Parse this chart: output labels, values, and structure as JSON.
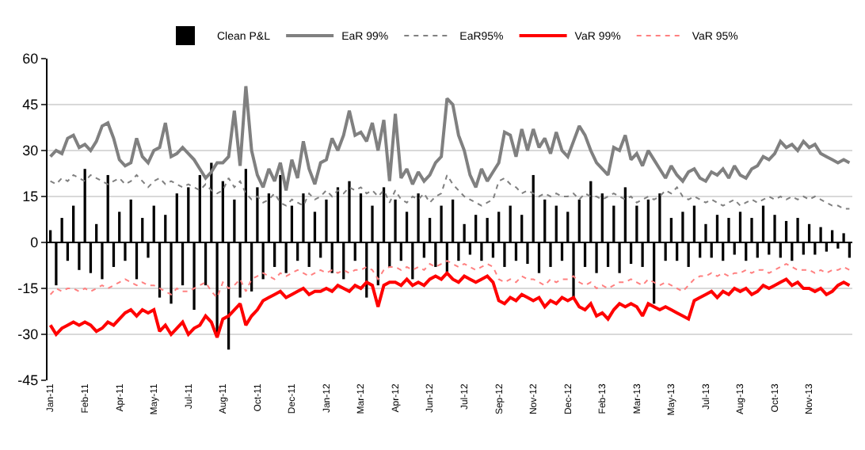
{
  "chart_data": {
    "type": "line",
    "categories": [
      "Jan-11",
      null,
      null,
      null,
      null,
      null,
      "Feb-11",
      null,
      null,
      null,
      null,
      null,
      "Apr-11",
      null,
      null,
      null,
      null,
      null,
      "May-11",
      null,
      null,
      null,
      null,
      null,
      "Jul-11",
      null,
      null,
      null,
      null,
      null,
      "Aug-11",
      null,
      null,
      null,
      null,
      null,
      "Oct-11",
      null,
      null,
      null,
      null,
      null,
      "Dec-11",
      null,
      null,
      null,
      null,
      null,
      "Jan-12",
      null,
      null,
      null,
      null,
      null,
      "Mar-12",
      null,
      null,
      null,
      null,
      null,
      "Apr-12",
      null,
      null,
      null,
      null,
      null,
      "Jun-12",
      null,
      null,
      null,
      null,
      null,
      "Jul-12",
      null,
      null,
      null,
      null,
      null,
      "Sep-12",
      null,
      null,
      null,
      null,
      null,
      "Nov-12",
      null,
      null,
      null,
      null,
      null,
      "Dec-12",
      null,
      null,
      null,
      null,
      null,
      "Feb-13",
      null,
      null,
      null,
      null,
      null,
      "Mar-13",
      null,
      null,
      null,
      null,
      null,
      "May-13",
      null,
      null,
      null,
      null,
      null,
      "Jul-13",
      null,
      null,
      null,
      null,
      null,
      "Aug-13",
      null,
      null,
      null,
      null,
      null,
      "Oct-13",
      null,
      null,
      null,
      null,
      null,
      "Nov-13",
      null,
      null,
      null,
      null,
      null,
      null,
      null
    ],
    "series": [
      {
        "name": "Clean P&L",
        "type": "bar",
        "color": "#000000",
        "values": [
          4,
          -14,
          8,
          -6,
          12,
          -9,
          24,
          -10,
          6,
          -12,
          22,
          -8,
          10,
          -6,
          14,
          -12,
          8,
          -5,
          12,
          -18,
          9,
          -20,
          16,
          -14,
          18,
          -22,
          22,
          -14,
          26,
          -30,
          20,
          -35,
          14,
          -18,
          24,
          -16,
          18,
          -12,
          16,
          -8,
          22,
          -10,
          12,
          -6,
          16,
          -8,
          10,
          -5,
          14,
          -10,
          18,
          -12,
          20,
          -6,
          16,
          -18,
          12,
          -14,
          18,
          -8,
          14,
          -6,
          10,
          -12,
          16,
          -5,
          8,
          -8,
          12,
          -10,
          14,
          -6,
          6,
          -4,
          9,
          -6,
          8,
          -5,
          10,
          -8,
          12,
          -6,
          9,
          -7,
          22,
          -10,
          14,
          -8,
          12,
          -6,
          10,
          -18,
          14,
          -8,
          20,
          -10,
          16,
          -8,
          12,
          -10,
          18,
          -7,
          12,
          -8,
          14,
          -20,
          16,
          -6,
          8,
          -6,
          10,
          -8,
          12,
          -5,
          6,
          -5,
          9,
          -6,
          8,
          -4,
          10,
          -6,
          8,
          -5,
          12,
          -4,
          9,
          -5,
          7,
          -6,
          8,
          -4,
          6,
          -4,
          5,
          -3,
          4,
          -2,
          3,
          -5
        ]
      },
      {
        "name": "EaR 99%",
        "color": "#808080",
        "line_style": "solid",
        "values": [
          28,
          30,
          29,
          34,
          35,
          31,
          32,
          30,
          33,
          38,
          39,
          34,
          27,
          25,
          26,
          34,
          28,
          26,
          30,
          31,
          39,
          28,
          29,
          31,
          29,
          27,
          24,
          21,
          23,
          26,
          26,
          28,
          43,
          25,
          51,
          30,
          22,
          18,
          24,
          20,
          26,
          17,
          27,
          21,
          33,
          24,
          19,
          26,
          27,
          34,
          30,
          35,
          43,
          35,
          36,
          33,
          39,
          30,
          40,
          20,
          42,
          21,
          24,
          19,
          23,
          20,
          22,
          26,
          28,
          47,
          45,
          35,
          30,
          22,
          18,
          24,
          20,
          23,
          26,
          36,
          35,
          28,
          37,
          30,
          37,
          31,
          34,
          29,
          36,
          30,
          28,
          33,
          38,
          35,
          30,
          26,
          24,
          22,
          31,
          30,
          35,
          27,
          29,
          25,
          30,
          27,
          24,
          21,
          25,
          22,
          20,
          23,
          24,
          21,
          20,
          23,
          22,
          24,
          21,
          25,
          22,
          21,
          24,
          25,
          28,
          27,
          29,
          33,
          31,
          32,
          30,
          33,
          31,
          32,
          29,
          28,
          27,
          26,
          27,
          26
        ]
      },
      {
        "name": "EaR95%",
        "color": "#808080",
        "line_style": "dotted",
        "values": [
          20,
          19,
          21,
          20,
          22,
          21,
          20,
          22,
          21,
          20,
          19,
          20,
          21,
          19,
          20,
          22,
          20,
          18,
          20,
          21,
          19,
          20,
          19,
          18,
          19,
          18,
          17,
          19,
          17,
          16,
          17,
          21,
          18,
          20,
          16,
          14,
          15,
          13,
          14,
          16,
          13,
          12,
          14,
          13,
          12,
          16,
          14,
          15,
          17,
          15,
          17,
          16,
          18,
          17,
          18,
          16,
          17,
          15,
          17,
          13,
          17,
          14,
          13,
          15,
          14,
          16,
          13,
          15,
          16,
          22,
          19,
          17,
          15,
          14,
          13,
          12,
          13,
          14,
          20,
          21,
          19,
          18,
          16,
          17,
          16,
          15,
          16,
          15,
          16,
          15,
          15,
          16,
          14,
          16,
          15,
          15,
          14,
          15,
          16,
          15,
          14,
          15,
          13,
          14,
          15,
          14,
          15,
          17,
          16,
          18,
          15,
          14,
          15,
          14,
          13,
          14,
          13,
          12,
          13,
          14,
          12,
          13,
          14,
          13,
          14,
          15,
          14,
          15,
          14,
          15,
          14,
          15,
          14,
          15,
          14,
          13,
          12,
          12,
          11,
          11
        ]
      },
      {
        "name": "VaR 99%",
        "color": "#ff0000",
        "line_style": "solid",
        "values": [
          -27,
          -30,
          -28,
          -27,
          -26,
          -27,
          -26,
          -27,
          -29,
          -28,
          -26,
          -27,
          -25,
          -23,
          -22,
          -24,
          -22,
          -23,
          -22,
          -29,
          -27,
          -30,
          -28,
          -26,
          -30,
          -28,
          -27,
          -24,
          -26,
          -31,
          -25,
          -24,
          -22,
          -20,
          -27,
          -24,
          -22,
          -19,
          -18,
          -17,
          -16,
          -18,
          -17,
          -16,
          -15,
          -17,
          -16,
          -16,
          -15,
          -16,
          -14,
          -15,
          -16,
          -14,
          -15,
          -13,
          -14,
          -21,
          -14,
          -13,
          -13,
          -14,
          -12,
          -14,
          -13,
          -14,
          -12,
          -11,
          -12,
          -10,
          -12,
          -13,
          -11,
          -12,
          -13,
          -12,
          -11,
          -13,
          -19,
          -20,
          -18,
          -19,
          -17,
          -18,
          -19,
          -18,
          -21,
          -19,
          -20,
          -18,
          -19,
          -18,
          -21,
          -22,
          -20,
          -24,
          -23,
          -25,
          -22,
          -20,
          -21,
          -20,
          -21,
          -24,
          -20,
          -21,
          -22,
          -21,
          -22,
          -23,
          -24,
          -25,
          -19,
          -18,
          -17,
          -16,
          -18,
          -16,
          -17,
          -15,
          -16,
          -15,
          -17,
          -16,
          -14,
          -15,
          -14,
          -13,
          -12,
          -14,
          -13,
          -15,
          -15,
          -16,
          -15,
          -17,
          -16,
          -14,
          -13,
          -14
        ]
      },
      {
        "name": "VaR 95%",
        "color": "#ff8080",
        "line_style": "dotted",
        "values": [
          -17,
          -15,
          -16,
          -15,
          -15,
          -16,
          -15,
          -16,
          -15,
          -14,
          -15,
          -14,
          -13,
          -12,
          -13,
          -14,
          -13,
          -14,
          -14,
          -15,
          -16,
          -17,
          -15,
          -16,
          -16,
          -15,
          -14,
          -13,
          -16,
          -18,
          -13,
          -15,
          -14,
          -12,
          -16,
          -12,
          -11,
          -10,
          -11,
          -12,
          -10,
          -11,
          -10,
          -9,
          -10,
          -11,
          -10,
          -9,
          -10,
          -9,
          -10,
          -9,
          -10,
          -9,
          -9,
          -8,
          -9,
          -12,
          -9,
          -8,
          -8,
          -9,
          -8,
          -9,
          -8,
          -9,
          -7,
          -8,
          -7,
          -6,
          -7,
          -8,
          -7,
          -8,
          -9,
          -8,
          -7,
          -8,
          -12,
          -13,
          -12,
          -13,
          -11,
          -12,
          -12,
          -13,
          -14,
          -12,
          -13,
          -12,
          -12,
          -11,
          -13,
          -14,
          -13,
          -15,
          -14,
          -15,
          -14,
          -13,
          -13,
          -12,
          -13,
          -14,
          -12,
          -13,
          -14,
          -13,
          -14,
          -15,
          -16,
          -14,
          -12,
          -11,
          -11,
          -10,
          -11,
          -10,
          -11,
          -10,
          -10,
          -9,
          -10,
          -9,
          -9,
          -10,
          -9,
          -8,
          -7,
          -8,
          -9,
          -9,
          -9,
          -10,
          -9,
          -10,
          -9,
          -9,
          -8,
          -9
        ]
      }
    ],
    "ylim": [
      -45,
      60
    ],
    "yticks": [
      -45,
      -30,
      -15,
      0,
      15,
      30,
      45,
      60
    ],
    "grid": "y",
    "legend": "top"
  }
}
